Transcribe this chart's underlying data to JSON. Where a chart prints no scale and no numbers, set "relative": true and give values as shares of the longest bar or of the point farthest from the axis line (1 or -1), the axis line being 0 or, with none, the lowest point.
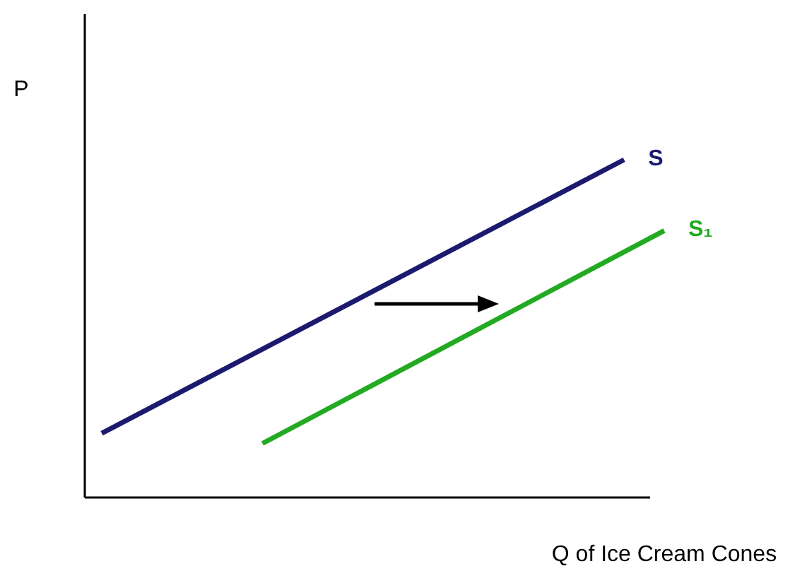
{
  "chart_data": {
    "type": "line",
    "relative": true,
    "xlabel": "Q of Ice Cream Cones",
    "ylabel": "P",
    "marker": "none",
    "line_style": "solid",
    "categories": [
      null,
      null,
      null,
      null,
      null,
      null,
      null,
      null,
      null,
      null,
      null,
      null,
      null,
      null,
      null
    ],
    "series": [
      {
        "name": "S",
        "color": "#1c1a6e",
        "values": [
          0.19,
          null,
          null,
          null,
          null,
          null,
          null,
          null,
          null,
          null,
          null,
          null,
          null,
          1.0,
          null
        ]
      },
      {
        "name": "S₁",
        "color": "#22aa22",
        "values": [
          null,
          null,
          null,
          null,
          0.16,
          null,
          null,
          null,
          null,
          null,
          null,
          null,
          null,
          null,
          0.79
        ]
      }
    ]
  }
}
